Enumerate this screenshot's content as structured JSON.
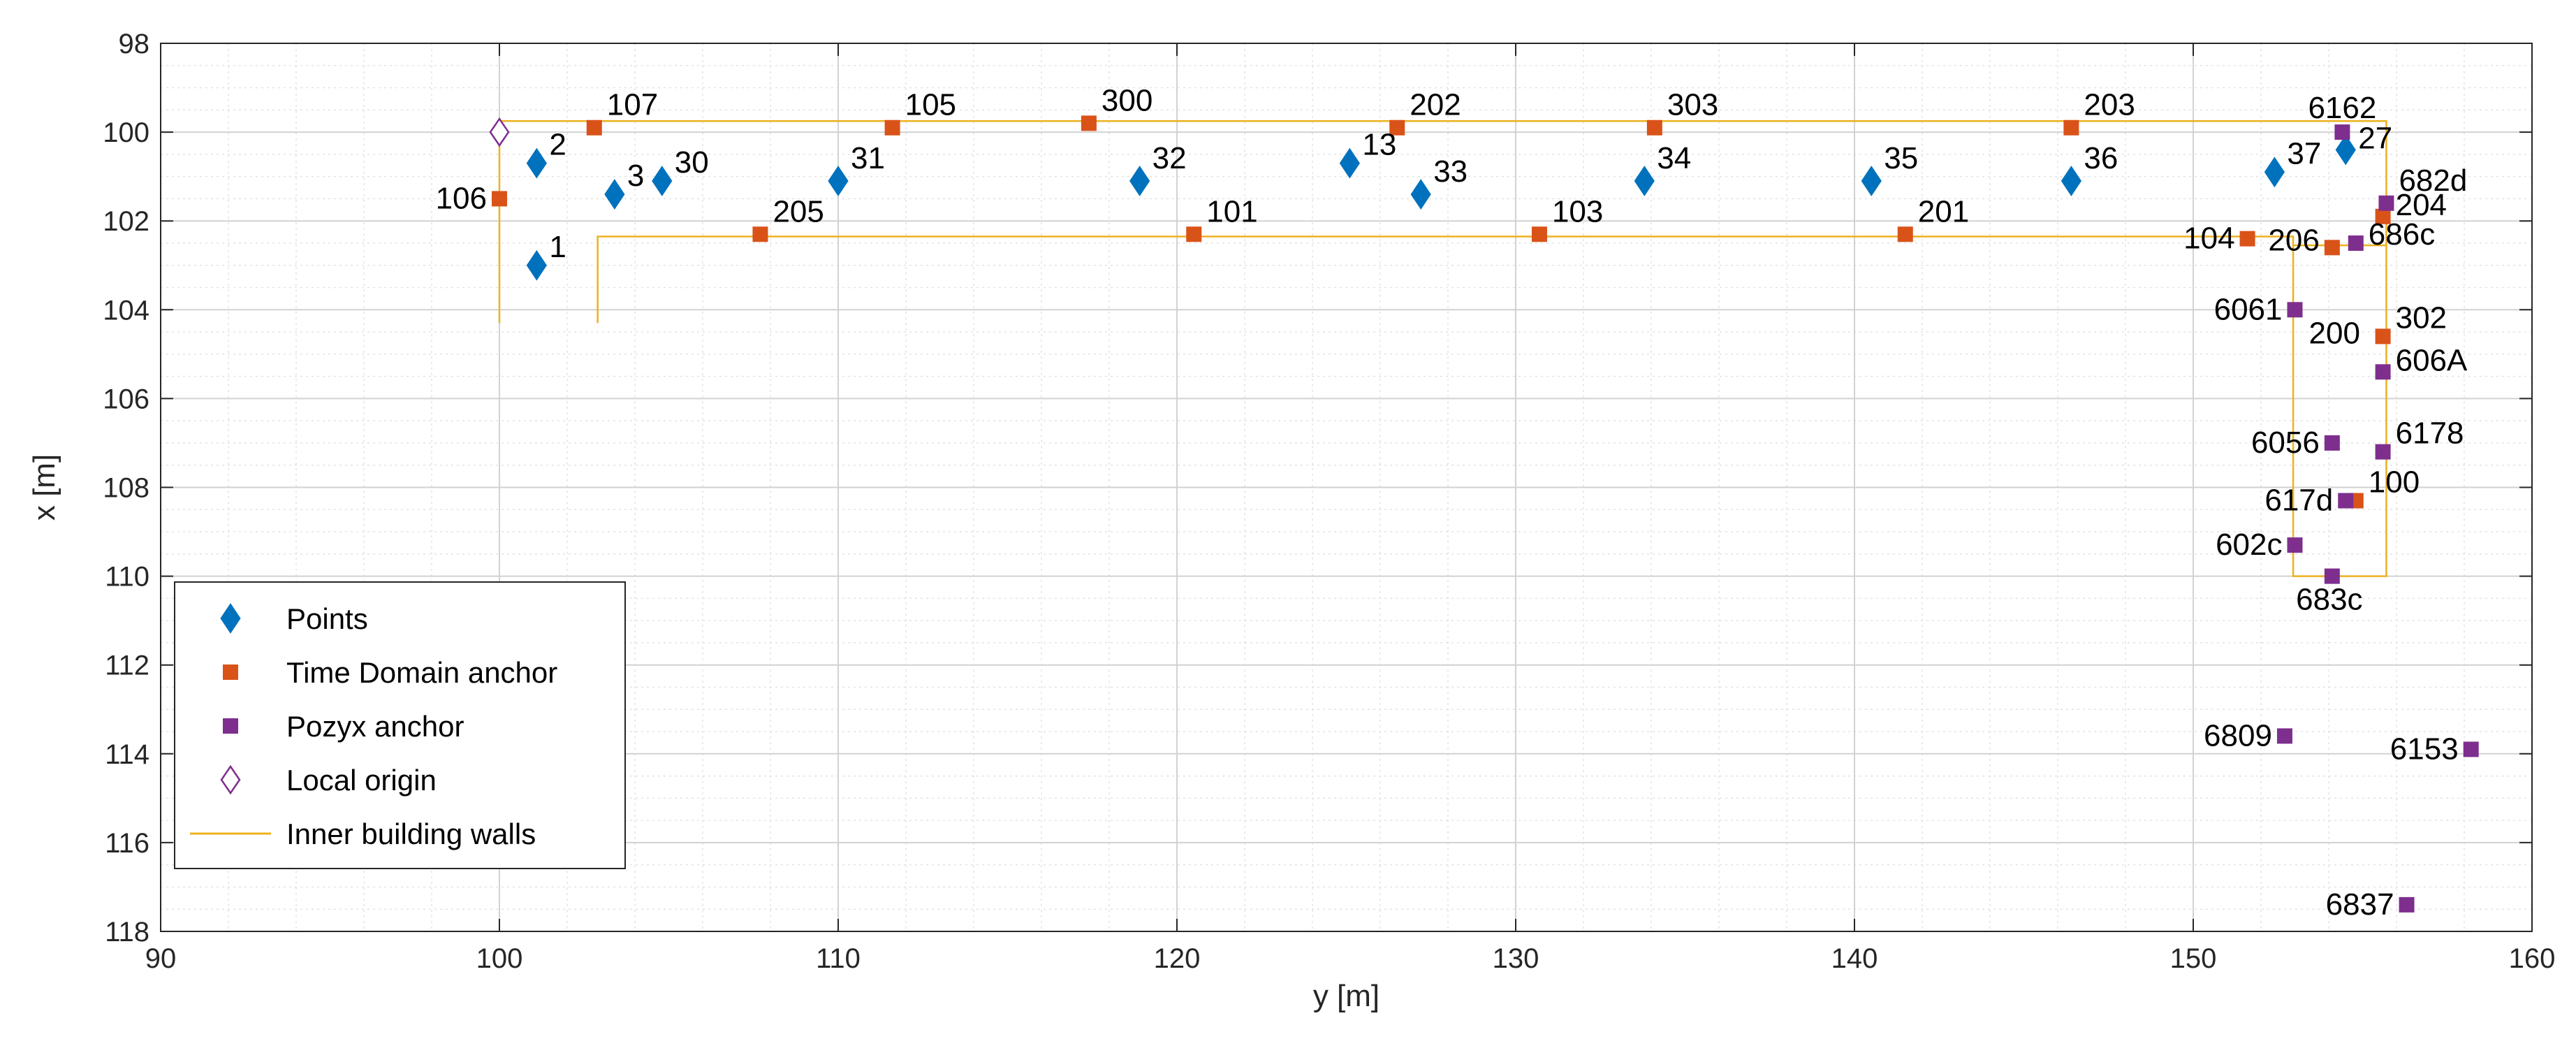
{
  "chart_data": {
    "type": "scatter",
    "xlabel": "y [m]",
    "ylabel": "x [m]",
    "xlim": [
      90,
      160
    ],
    "ylim": [
      98,
      118
    ],
    "y_reversed": true,
    "grid": true,
    "minor_grid": true,
    "xticks": [
      "90",
      "100",
      "110",
      "120",
      "130",
      "140",
      "150",
      "160"
    ],
    "yticks": [
      "98",
      "100",
      "102",
      "104",
      "106",
      "108",
      "110",
      "112",
      "114",
      "116",
      "118"
    ],
    "legend_position": "bottom-left",
    "colors": {
      "points": "#0072BD",
      "time_domain": "#D95319",
      "pozyx": "#7E2F8E",
      "origin": "#7E2F8E",
      "walls": "#EDB120"
    },
    "legend": [
      {
        "key": "points",
        "label": "Points"
      },
      {
        "key": "time_domain",
        "label": "Time Domain anchor"
      },
      {
        "key": "pozyx",
        "label": "Pozyx anchor"
      },
      {
        "key": "origin",
        "label": "Local origin"
      },
      {
        "key": "walls",
        "label": "Inner building walls"
      }
    ],
    "series": [
      {
        "name": "Points",
        "marker": "diamond-filled",
        "points": [
          {
            "label": "1",
            "x": 101.1,
            "y": 103.0
          },
          {
            "label": "2",
            "x": 101.1,
            "y": 100.7
          },
          {
            "label": "3",
            "x": 103.4,
            "y": 101.4
          },
          {
            "label": "30",
            "x": 104.8,
            "y": 101.1
          },
          {
            "label": "31",
            "x": 110.0,
            "y": 101.1
          },
          {
            "label": "32",
            "x": 118.9,
            "y": 101.1
          },
          {
            "label": "13",
            "x": 125.1,
            "y": 100.7
          },
          {
            "label": "33",
            "x": 127.2,
            "y": 101.4
          },
          {
            "label": "34",
            "x": 133.8,
            "y": 101.1
          },
          {
            "label": "35",
            "x": 140.5,
            "y": 101.1
          },
          {
            "label": "36",
            "x": 146.4,
            "y": 101.1
          },
          {
            "label": "37",
            "x": 152.4,
            "y": 100.9
          },
          {
            "label": "27",
            "x": 154.5,
            "y": 100.4
          }
        ]
      },
      {
        "name": "Time Domain anchor",
        "marker": "square-filled",
        "points": [
          {
            "label": "106",
            "x": 100.0,
            "y": 101.5
          },
          {
            "label": "107",
            "x": 102.8,
            "y": 99.9
          },
          {
            "label": "105",
            "x": 111.6,
            "y": 99.9
          },
          {
            "label": "300",
            "x": 117.4,
            "y": 99.8
          },
          {
            "label": "202",
            "x": 126.5,
            "y": 99.9
          },
          {
            "label": "303",
            "x": 134.1,
            "y": 99.9
          },
          {
            "label": "203",
            "x": 146.4,
            "y": 99.9
          },
          {
            "label": "205",
            "x": 107.7,
            "y": 102.3
          },
          {
            "label": "101",
            "x": 120.5,
            "y": 102.3
          },
          {
            "label": "103",
            "x": 130.7,
            "y": 102.3
          },
          {
            "label": "201",
            "x": 141.5,
            "y": 102.3
          },
          {
            "label": "104",
            "x": 151.6,
            "y": 102.4
          },
          {
            "label": "206",
            "x": 154.1,
            "y": 102.6
          },
          {
            "label": "204",
            "x": 155.6,
            "y": 101.9
          },
          {
            "label": "302",
            "x": 155.6,
            "y": 104.6
          },
          {
            "label": "100",
            "x": 154.8,
            "y": 108.3
          }
        ]
      },
      {
        "name": "Pozyx anchor",
        "marker": "square-filled",
        "points": [
          {
            "label": "6162",
            "x": 154.4,
            "y": 100.0
          },
          {
            "label": "682d",
            "x": 155.7,
            "y": 101.6
          },
          {
            "label": "686c",
            "x": 154.8,
            "y": 102.5
          },
          {
            "label": "6061",
            "x": 153.0,
            "y": 104.0
          },
          {
            "label": "200",
            "x": 153.0,
            "y": 104.0
          },
          {
            "label": "606A",
            "x": 155.6,
            "y": 105.4
          },
          {
            "label": "6056",
            "x": 154.1,
            "y": 107.0
          },
          {
            "label": "6178",
            "x": 155.6,
            "y": 107.2
          },
          {
            "label": "617d",
            "x": 154.5,
            "y": 108.3
          },
          {
            "label": "602c",
            "x": 153.0,
            "y": 109.3
          },
          {
            "label": "683c",
            "x": 154.1,
            "y": 110.0
          },
          {
            "label": "6809",
            "x": 152.7,
            "y": 113.6
          },
          {
            "label": "6153",
            "x": 158.2,
            "y": 113.9
          },
          {
            "label": "6837",
            "x": 156.3,
            "y": 117.4
          }
        ]
      },
      {
        "name": "Local origin",
        "marker": "diamond-open",
        "points": [
          {
            "label": "",
            "x": 100.0,
            "y": 100.0
          }
        ]
      }
    ],
    "walls": [
      [
        [
          100.0,
          104.3
        ],
        [
          100.0,
          99.75
        ],
        [
          155.7,
          99.75
        ],
        [
          155.7,
          110.0
        ],
        [
          152.95,
          110.0
        ],
        [
          152.95,
          102.35
        ],
        [
          102.9,
          102.35
        ],
        [
          102.9,
          104.3
        ]
      ],
      [
        [
          152.95,
          102.55
        ],
        [
          155.7,
          102.55
        ]
      ]
    ]
  }
}
